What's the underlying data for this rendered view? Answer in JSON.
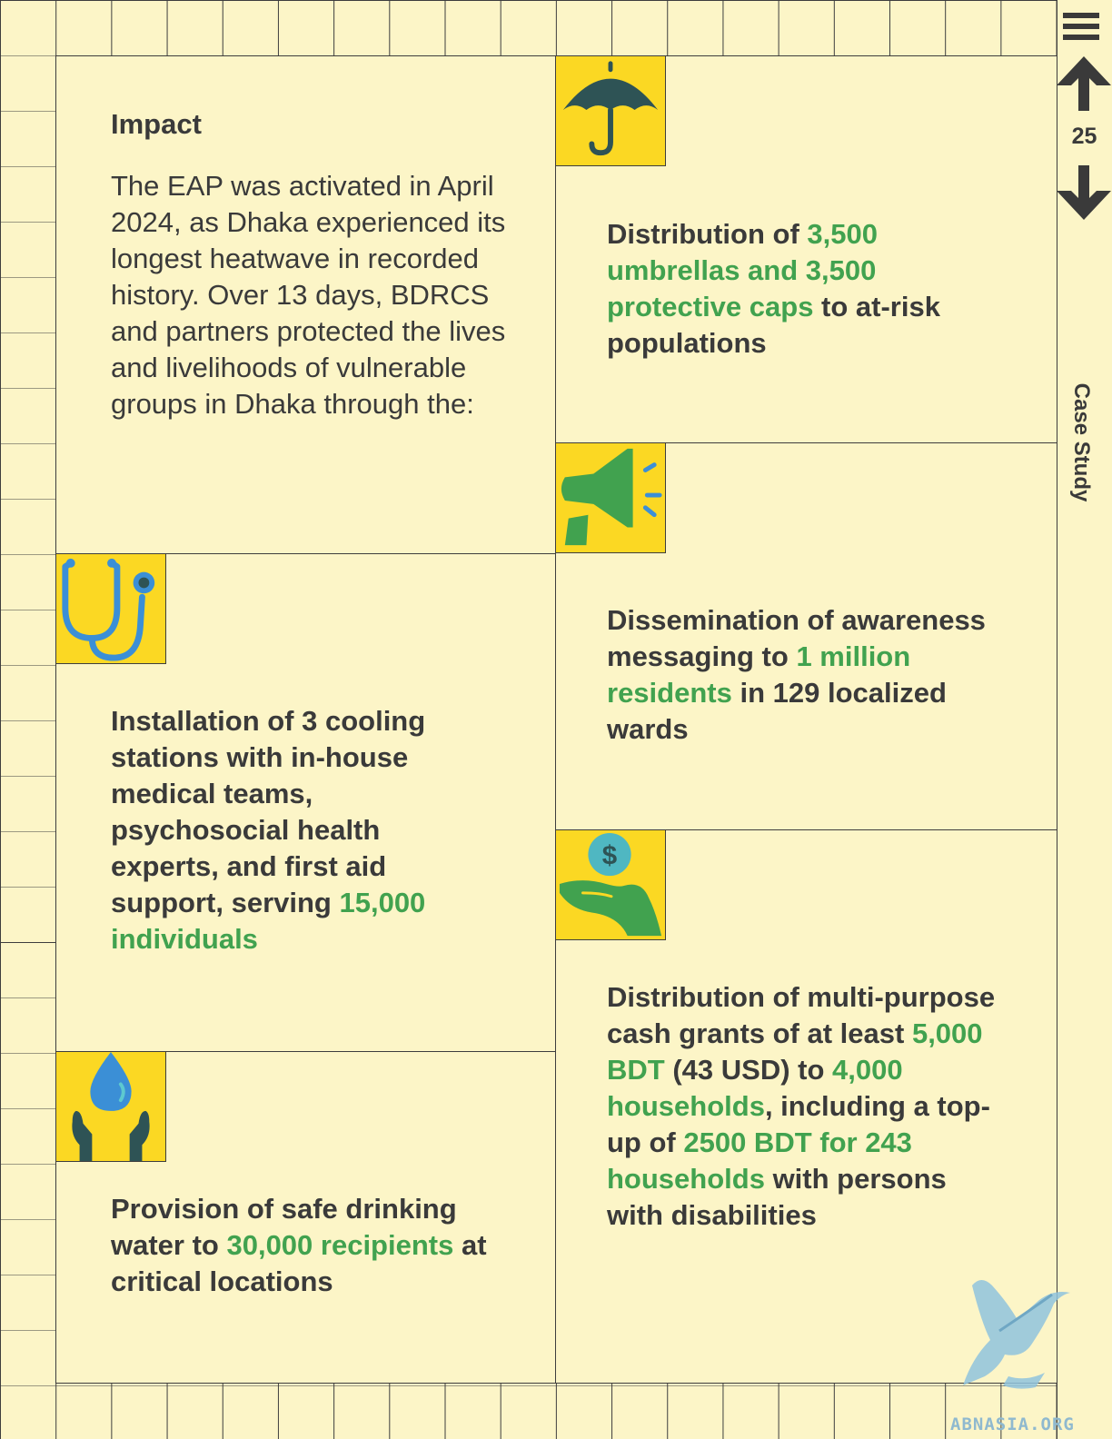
{
  "sidebar": {
    "page_number": "25",
    "section_label": "Case Study",
    "icons": [
      "menu-icon",
      "arrow-up-icon",
      "arrow-down-icon"
    ]
  },
  "intro": {
    "heading": "Impact",
    "body": "The EAP was activated in April 2024, as Dhaka experienced its longest heatwave in recorded history. Over 13 days, BDRCS and partners protected the lives and livelihoods of vulnerable groups in Dhaka through the:"
  },
  "items": {
    "umbrellas": {
      "icon": "umbrella-icon",
      "t1": "Distribution of ",
      "h1": "3,500 umbrellas and 3,500 protective caps",
      "t2": " to at-risk populations"
    },
    "cooling": {
      "icon": "stethoscope-icon",
      "t1": "Installation of 3 cooling stations with in-house medical teams, psychosocial health experts, and first aid support, serving ",
      "h1": "15,000 individuals"
    },
    "awareness": {
      "icon": "megaphone-icon",
      "t1": "Dissemination of awareness messaging to ",
      "h1": "1 million residents",
      "t2": " in 129 localized wards"
    },
    "water": {
      "icon": "water-hands-icon",
      "t1": "Provision of safe drinking water to ",
      "h1": "30,000 recipients",
      "t2": " at critical locations"
    },
    "cash": {
      "icon": "cash-hand-icon",
      "coin_symbol": "$",
      "t1": "Distribution of multi-purpose cash grants of at least ",
      "h1": "5,000 BDT",
      "t2": " (43 USD) to ",
      "h2": "4,000 households",
      "t3": ", including a top-up of ",
      "h3": "2500 BDT for 243 households",
      "t4": " with persons with disabilities"
    }
  },
  "watermark": {
    "text": "ABNASIA.ORG",
    "icon": "griffin-logo-icon"
  },
  "colors": {
    "background": "#fcf5c7",
    "tile": "#fbd823",
    "highlight": "#41a24f",
    "text": "#3a3a3a",
    "grid": "#3d3d3d",
    "icon_blue": "#3b8fd6",
    "icon_dark_teal": "#2e5355"
  }
}
